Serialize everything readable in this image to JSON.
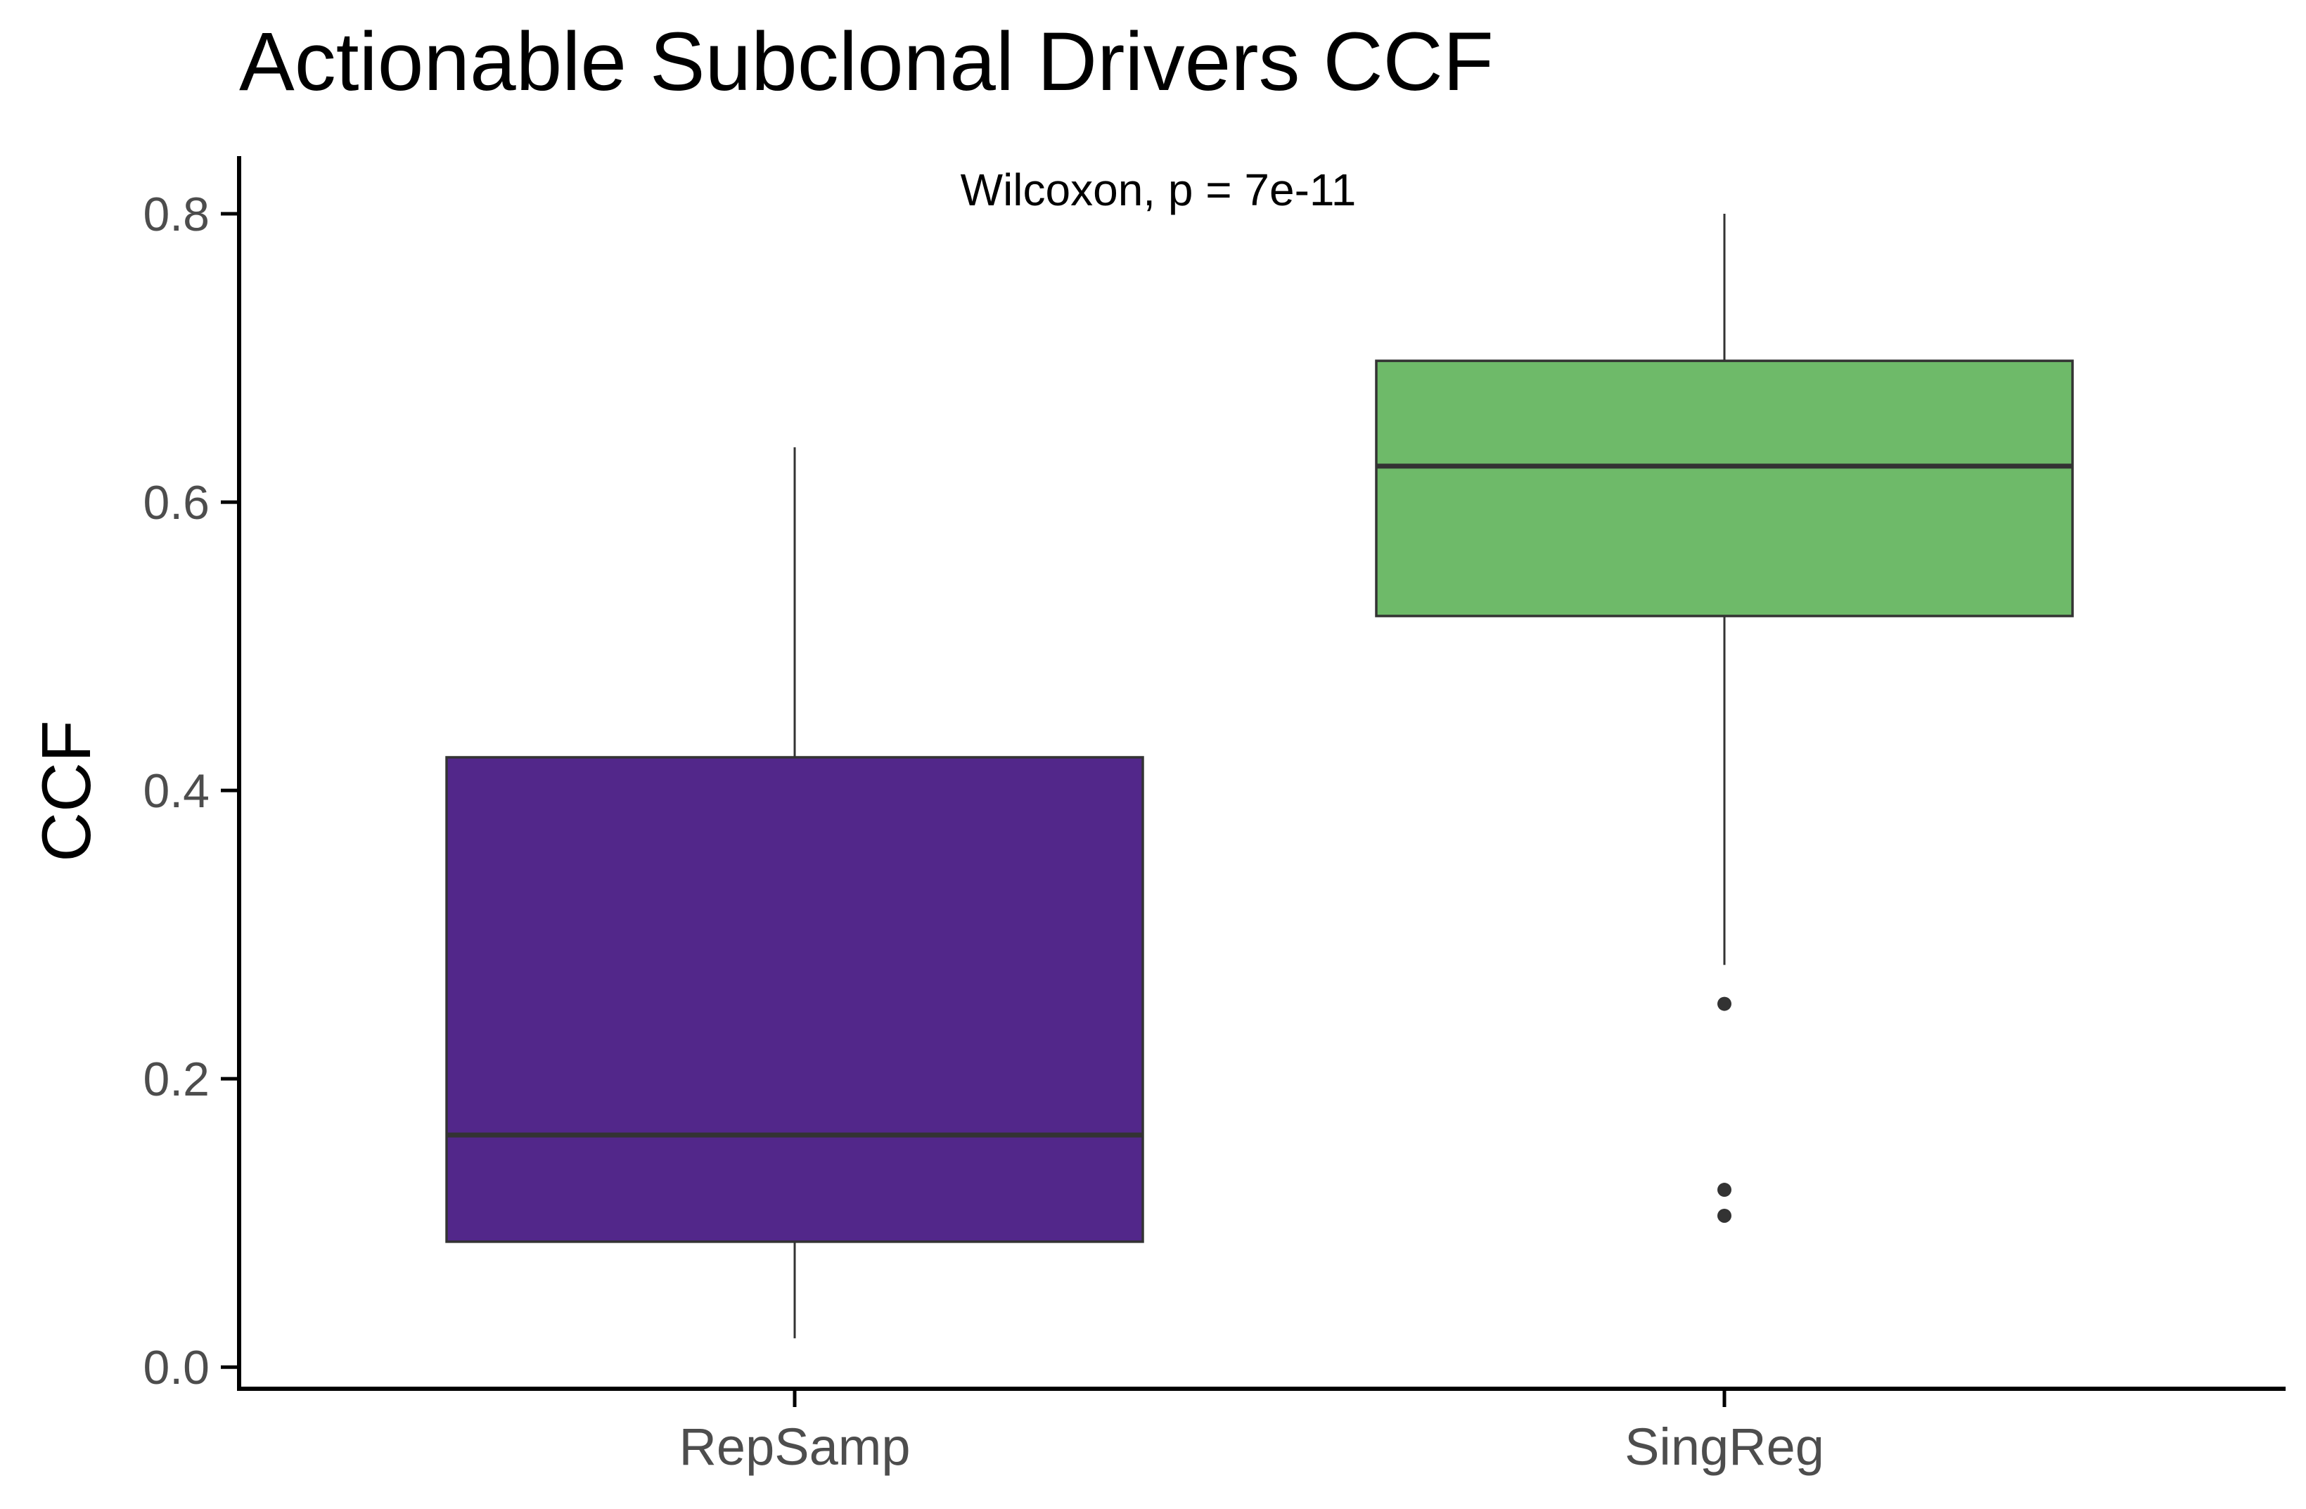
{
  "chart_data": {
    "type": "box",
    "title": "Actionable Subclonal Drivers CCF",
    "xlabel": "",
    "ylabel": "CCF",
    "ylim": [
      -0.015,
      0.84
    ],
    "yticks": [
      0.0,
      0.2,
      0.4,
      0.6,
      0.8
    ],
    "ytick_labels": [
      "0.0",
      "0.2",
      "0.4",
      "0.6",
      "0.8"
    ],
    "categories": [
      "RepSamp",
      "SingReg"
    ],
    "annotation": "Wilcoxon, p = 7e-11",
    "grid": false,
    "legend": "none",
    "series": [
      {
        "category": "RepSamp",
        "color": "#52278A",
        "whisker_low": 0.02,
        "q1": 0.087,
        "median": 0.161,
        "q3": 0.423,
        "whisker_high": 0.638,
        "outliers": []
      },
      {
        "category": "SingReg",
        "color": "#6EBA69",
        "whisker_low": 0.279,
        "q1": 0.521,
        "median": 0.625,
        "q3": 0.698,
        "whisker_high": 0.8,
        "outliers": [
          0.252,
          0.123,
          0.105
        ]
      }
    ]
  }
}
